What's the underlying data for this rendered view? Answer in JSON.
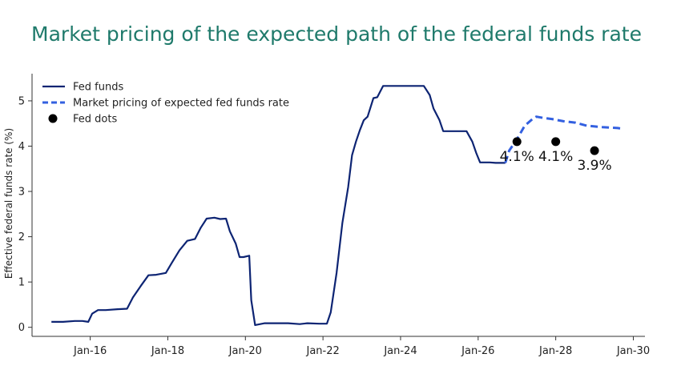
{
  "chart_data": {
    "type": "line",
    "title": "Market pricing of the expected path of the federal funds rate",
    "ylabel": "Effective federal funds rate (%)",
    "xlabel": "",
    "xlim": [
      2014.5,
      2030.3
    ],
    "ylim": [
      -0.2,
      5.6
    ],
    "x_ticks": [
      {
        "value": 2016,
        "label": "Jan-16"
      },
      {
        "value": 2018,
        "label": "Jan-18"
      },
      {
        "value": 2020,
        "label": "Jan-20"
      },
      {
        "value": 2022,
        "label": "Jan-22"
      },
      {
        "value": 2024,
        "label": "Jan-24"
      },
      {
        "value": 2026,
        "label": "Jan-26"
      },
      {
        "value": 2028,
        "label": "Jan-28"
      },
      {
        "value": 2030,
        "label": "Jan-30"
      }
    ],
    "y_ticks": [
      {
        "value": 0,
        "label": "0"
      },
      {
        "value": 1,
        "label": "1"
      },
      {
        "value": 2,
        "label": "2"
      },
      {
        "value": 3,
        "label": "3"
      },
      {
        "value": 4,
        "label": "4"
      },
      {
        "value": 5,
        "label": "5"
      }
    ],
    "legend_position": "top-left",
    "grid": false,
    "series": [
      {
        "name": "Fed funds",
        "style": "solid",
        "color": "#0d2473",
        "points": [
          [
            2015.0,
            0.12
          ],
          [
            2015.3,
            0.12
          ],
          [
            2015.6,
            0.14
          ],
          [
            2015.8,
            0.14
          ],
          [
            2015.95,
            0.12
          ],
          [
            2016.05,
            0.3
          ],
          [
            2016.2,
            0.38
          ],
          [
            2016.4,
            0.38
          ],
          [
            2016.7,
            0.4
          ],
          [
            2016.95,
            0.41
          ],
          [
            2017.1,
            0.66
          ],
          [
            2017.3,
            0.91
          ],
          [
            2017.5,
            1.15
          ],
          [
            2017.7,
            1.16
          ],
          [
            2017.95,
            1.2
          ],
          [
            2018.1,
            1.42
          ],
          [
            2018.3,
            1.7
          ],
          [
            2018.5,
            1.91
          ],
          [
            2018.7,
            1.95
          ],
          [
            2018.85,
            2.2
          ],
          [
            2019.0,
            2.4
          ],
          [
            2019.2,
            2.42
          ],
          [
            2019.35,
            2.39
          ],
          [
            2019.5,
            2.4
          ],
          [
            2019.6,
            2.12
          ],
          [
            2019.75,
            1.85
          ],
          [
            2019.85,
            1.55
          ],
          [
            2019.95,
            1.55
          ],
          [
            2020.1,
            1.58
          ],
          [
            2020.15,
            0.6
          ],
          [
            2020.25,
            0.05
          ],
          [
            2020.5,
            0.09
          ],
          [
            2020.8,
            0.09
          ],
          [
            2021.1,
            0.09
          ],
          [
            2021.4,
            0.07
          ],
          [
            2021.6,
            0.09
          ],
          [
            2021.9,
            0.08
          ],
          [
            2022.1,
            0.08
          ],
          [
            2022.2,
            0.33
          ],
          [
            2022.35,
            1.2
          ],
          [
            2022.5,
            2.3
          ],
          [
            2022.65,
            3.1
          ],
          [
            2022.75,
            3.8
          ],
          [
            2022.85,
            4.1
          ],
          [
            2022.95,
            4.35
          ],
          [
            2023.05,
            4.57
          ],
          [
            2023.15,
            4.65
          ],
          [
            2023.3,
            5.06
          ],
          [
            2023.4,
            5.08
          ],
          [
            2023.55,
            5.33
          ],
          [
            2023.7,
            5.33
          ],
          [
            2024.0,
            5.33
          ],
          [
            2024.3,
            5.33
          ],
          [
            2024.6,
            5.33
          ],
          [
            2024.75,
            5.13
          ],
          [
            2024.85,
            4.83
          ],
          [
            2025.0,
            4.58
          ],
          [
            2025.1,
            4.33
          ],
          [
            2025.4,
            4.33
          ],
          [
            2025.7,
            4.33
          ],
          [
            2025.85,
            4.1
          ],
          [
            2025.95,
            3.85
          ],
          [
            2026.05,
            3.64
          ],
          [
            2026.3,
            3.64
          ],
          [
            2026.45,
            3.63
          ],
          [
            2026.7,
            3.63
          ]
        ]
      },
      {
        "name": "Market pricing of expected fed funds rate",
        "style": "dashed",
        "color": "#3360e0",
        "points": [
          [
            2026.7,
            3.63
          ],
          [
            2026.8,
            3.9
          ],
          [
            2027.0,
            4.15
          ],
          [
            2027.2,
            4.45
          ],
          [
            2027.4,
            4.6
          ],
          [
            2027.5,
            4.65
          ],
          [
            2027.7,
            4.62
          ],
          [
            2027.9,
            4.6
          ],
          [
            2028.2,
            4.55
          ],
          [
            2028.5,
            4.52
          ],
          [
            2028.8,
            4.45
          ],
          [
            2029.2,
            4.42
          ],
          [
            2029.6,
            4.4
          ],
          [
            2029.75,
            4.38
          ]
        ]
      },
      {
        "name": "Fed dots",
        "style": "markers",
        "color": "#000000",
        "points": [
          {
            "x": 2027.0,
            "y": 4.1,
            "label": "4.1%"
          },
          {
            "x": 2028.0,
            "y": 4.1,
            "label": "4.1%"
          },
          {
            "x": 2029.0,
            "y": 3.9,
            "label": "3.9%"
          }
        ]
      }
    ]
  }
}
